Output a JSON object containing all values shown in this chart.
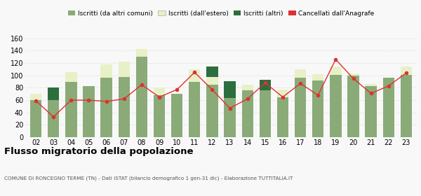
{
  "years": [
    "02",
    "03",
    "04",
    "05",
    "06",
    "07",
    "08",
    "09",
    "10",
    "11",
    "12",
    "13",
    "14",
    "15",
    "16",
    "17",
    "18",
    "19",
    "20",
    "21",
    "22",
    "23"
  ],
  "iscritti_comuni": [
    60,
    60,
    90,
    83,
    96,
    97,
    130,
    68,
    70,
    90,
    85,
    63,
    76,
    76,
    65,
    96,
    92,
    101,
    100,
    83,
    96,
    101
  ],
  "iscritti_estero": [
    10,
    0,
    15,
    0,
    22,
    25,
    13,
    13,
    0,
    20,
    13,
    0,
    9,
    0,
    12,
    14,
    10,
    14,
    3,
    3,
    0,
    14
  ],
  "iscritti_altri": [
    0,
    21,
    0,
    0,
    0,
    0,
    0,
    0,
    0,
    0,
    17,
    28,
    0,
    17,
    0,
    0,
    0,
    0,
    0,
    0,
    0,
    0
  ],
  "cancellati": [
    59,
    33,
    60,
    60,
    58,
    62,
    85,
    65,
    77,
    105,
    77,
    47,
    62,
    88,
    65,
    87,
    68,
    126,
    95,
    71,
    83,
    104
  ],
  "color_comuni": "#8aab78",
  "color_estero": "#e8f0c8",
  "color_altri": "#2d6e3e",
  "color_cancellati": "#e03030",
  "ylim": [
    0,
    165
  ],
  "yticks": [
    0,
    20,
    40,
    60,
    80,
    100,
    120,
    140,
    160
  ],
  "title": "Flusso migratorio della popolazione",
  "subtitle": "COMUNE DI RONCEGNO TERME (TN) - Dati ISTAT (bilancio demografico 1 gen-31 dic) - Elaborazione TUTTITALIA.IT",
  "legend_labels": [
    "Iscritti (da altri comuni)",
    "Iscritti (dall'estero)",
    "Iscritti (altri)",
    "Cancellati dall'Anagrafe"
  ],
  "bg_color": "#f8f8f8",
  "grid_color": "#cccccc"
}
